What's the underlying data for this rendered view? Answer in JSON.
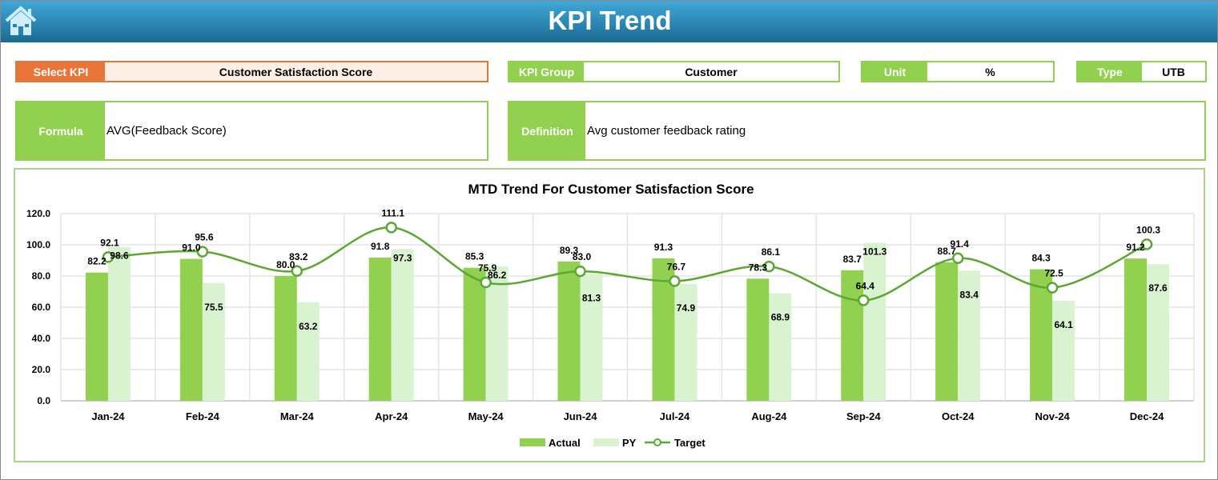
{
  "header": {
    "title": "KPI Trend",
    "home_icon": "home-icon"
  },
  "select_kpi": {
    "label": "Select KPI",
    "value": "Customer Satisfaction Score"
  },
  "kpi_group": {
    "label": "KPI Group",
    "value": "Customer"
  },
  "unit": {
    "label": "Unit",
    "value": "%"
  },
  "type": {
    "label": "Type",
    "value": "UTB"
  },
  "formula": {
    "label": "Formula",
    "value": "AVG(Feedback Score)"
  },
  "definition": {
    "label": "Definition",
    "value": "Avg customer feedback rating"
  },
  "colors": {
    "actual": "#92d050",
    "py": "#d9f2d0",
    "target": "#5aa832",
    "accent_orange": "#e8763a"
  },
  "chart_data": {
    "type": "bar",
    "title": "MTD Trend For Customer Satisfaction Score",
    "categories": [
      "Jan-24",
      "Feb-24",
      "Mar-24",
      "Apr-24",
      "May-24",
      "Jun-24",
      "Jul-24",
      "Aug-24",
      "Sep-24",
      "Oct-24",
      "Nov-24",
      "Dec-24"
    ],
    "series": [
      {
        "name": "Actual",
        "type": "bar",
        "values": [
          82.2,
          91.0,
          80.0,
          91.8,
          85.3,
          89.3,
          91.3,
          78.3,
          83.7,
          88.7,
          84.3,
          91.2
        ]
      },
      {
        "name": "PY",
        "type": "bar",
        "values": [
          98.6,
          75.5,
          63.2,
          97.3,
          86.2,
          81.3,
          74.9,
          68.9,
          101.3,
          83.4,
          64.1,
          87.6
        ]
      },
      {
        "name": "Target",
        "type": "line",
        "smooth": true,
        "values": [
          92.1,
          95.6,
          83.2,
          111.1,
          75.9,
          83.0,
          76.7,
          86.1,
          64.4,
          91.4,
          72.5,
          100.3
        ]
      }
    ],
    "yticks": [
      "0.0",
      "20.0",
      "40.0",
      "60.0",
      "80.0",
      "100.0",
      "120.0"
    ],
    "ylim": [
      0,
      120
    ],
    "grid": true,
    "legend": "bottom"
  }
}
